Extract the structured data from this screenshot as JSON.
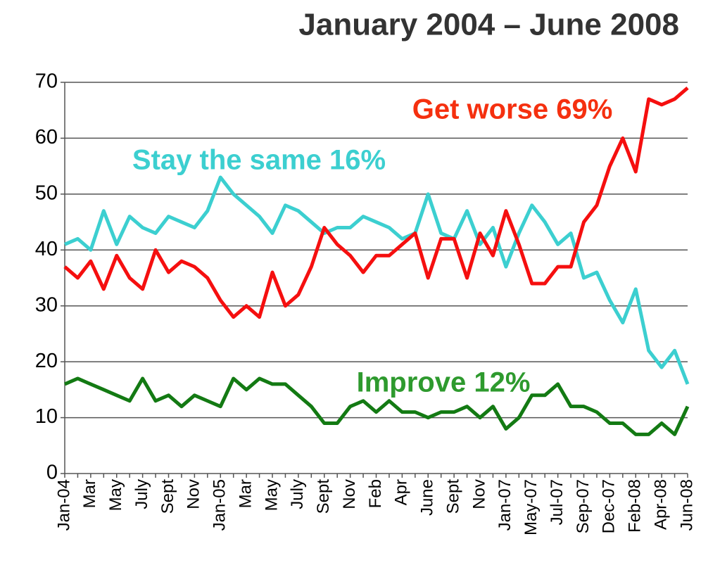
{
  "chart_data": {
    "type": "line",
    "title": "January 2004 – June 2008",
    "categories": [
      "Jan-04",
      null,
      "Mar",
      null,
      "May",
      null,
      "July",
      null,
      "Sept",
      null,
      "Nov",
      null,
      "Jan-05",
      null,
      "Mar",
      null,
      "May",
      null,
      "July",
      null,
      "Sept",
      null,
      "Nov",
      null,
      "Feb",
      null,
      "Apr",
      null,
      "June",
      null,
      "Sept",
      null,
      "Nov",
      null,
      "Jan-07",
      null,
      "May-07",
      null,
      "Jul-07",
      null,
      "Sep-07",
      null,
      "Dec-07",
      null,
      "Feb-08",
      null,
      "Apr-08",
      null,
      "Jun-08"
    ],
    "series": [
      {
        "name": "Get worse",
        "color": "#f50f0f",
        "values": [
          37,
          35,
          38,
          33,
          39,
          35,
          33,
          40,
          36,
          38,
          37,
          35,
          31,
          28,
          30,
          28,
          36,
          30,
          32,
          37,
          44,
          41,
          39,
          36,
          39,
          39,
          41,
          43,
          35,
          42,
          42,
          35,
          43,
          39,
          47,
          41,
          34,
          34,
          37,
          37,
          45,
          48,
          55,
          60,
          54,
          67,
          66,
          67,
          69
        ]
      },
      {
        "name": "Stay the same",
        "color": "#3ccfd0",
        "values": [
          41,
          42,
          40,
          47,
          41,
          46,
          44,
          43,
          46,
          45,
          44,
          47,
          53,
          50,
          48,
          46,
          43,
          48,
          47,
          45,
          43,
          44,
          44,
          46,
          45,
          44,
          42,
          43,
          50,
          43,
          42,
          47,
          41,
          44,
          37,
          43,
          48,
          45,
          41,
          43,
          35,
          36,
          31,
          27,
          33,
          22,
          19,
          22,
          16
        ]
      },
      {
        "name": "Improve",
        "color": "#137a13",
        "values": [
          16,
          17,
          16,
          15,
          14,
          13,
          17,
          13,
          14,
          12,
          14,
          13,
          12,
          17,
          15,
          17,
          16,
          16,
          14,
          12,
          9,
          9,
          12,
          13,
          11,
          13,
          11,
          11,
          10,
          11,
          11,
          12,
          10,
          12,
          8,
          10,
          14,
          14,
          16,
          12,
          12,
          11,
          9,
          9,
          7,
          7,
          9,
          7,
          12
        ]
      }
    ],
    "annotations": [
      {
        "text": "Get worse 69%",
        "color": "#f5300f"
      },
      {
        "text": "Stay the same 16%",
        "color": "#3ccfd0"
      },
      {
        "text": "Improve 12%",
        "color": "#2e9a2e"
      }
    ],
    "ylim": [
      0,
      70
    ],
    "yticks": [
      0,
      10,
      20,
      30,
      40,
      50,
      60,
      70
    ],
    "grid": true
  }
}
